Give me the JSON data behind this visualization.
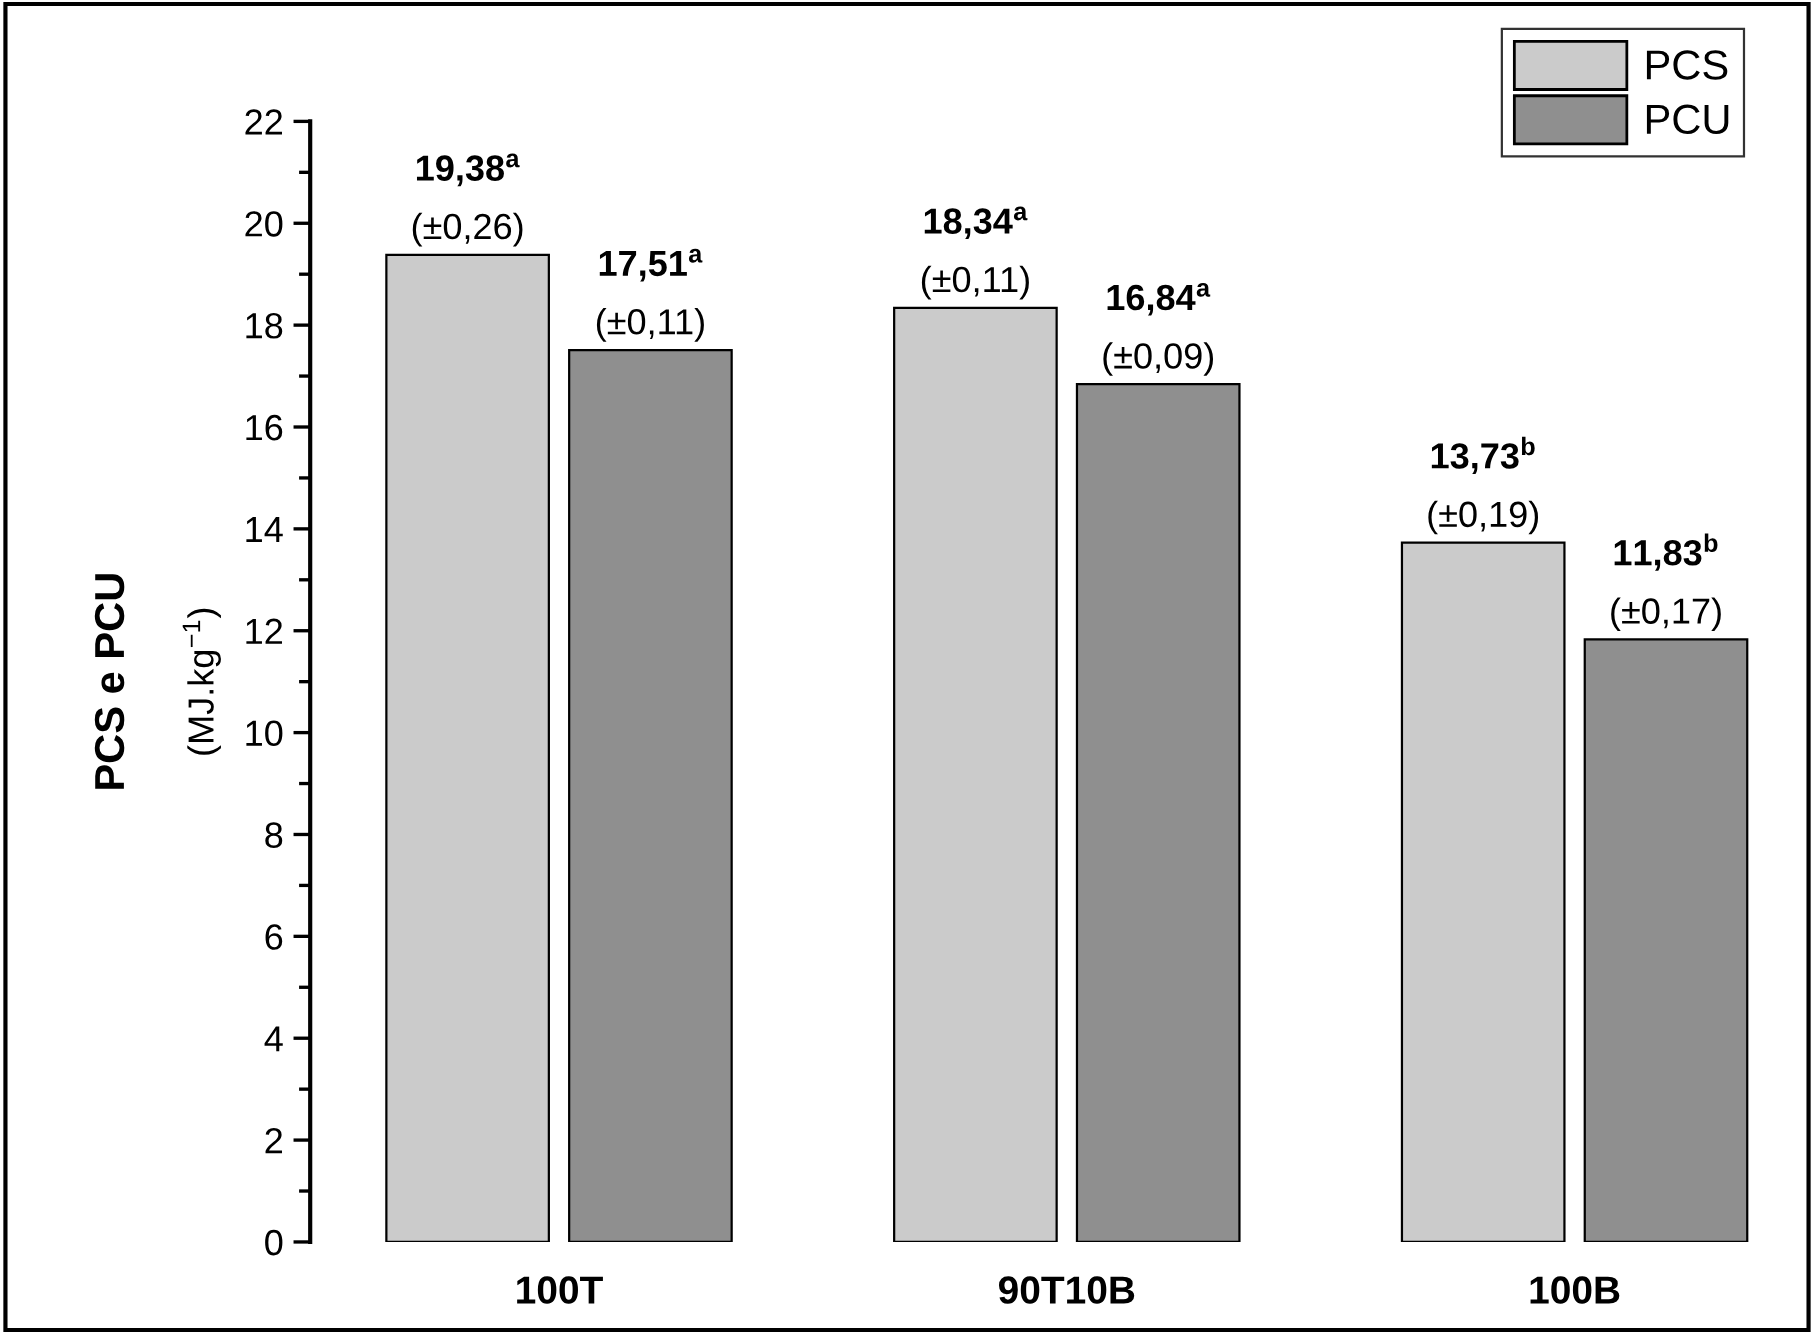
{
  "chart_data": {
    "type": "bar",
    "ylabel": "PCS e PCU\n(MJ.kg$^{−1}$)",
    "categories": [
      "100T",
      "90T10B",
      "100B"
    ],
    "series": [
      {
        "name": "PCS",
        "color": "#cbcbcb",
        "values": [
          19.38,
          18.34,
          13.73
        ],
        "value_labels": [
          "19,38$^{a}$\n(±0,26)",
          "18,34$^{a}$\n(±0,11)",
          "13,73$^{b}$\n(±0,19)"
        ]
      },
      {
        "name": "PCU",
        "color": "#8f8f8f",
        "values": [
          17.51,
          16.84,
          11.83
        ],
        "value_labels": [
          "17,51$^{a}$\n(±0,11)",
          "16,84$^{a}$\n(±0,09)",
          "11,83$^{b}$\n(±0,17)"
        ]
      }
    ],
    "ylim": [
      0,
      22
    ],
    "yticks": [
      0,
      2,
      4,
      6,
      8,
      10,
      12,
      14,
      16,
      18,
      20,
      22
    ],
    "grid": false,
    "legend": "top right"
  }
}
